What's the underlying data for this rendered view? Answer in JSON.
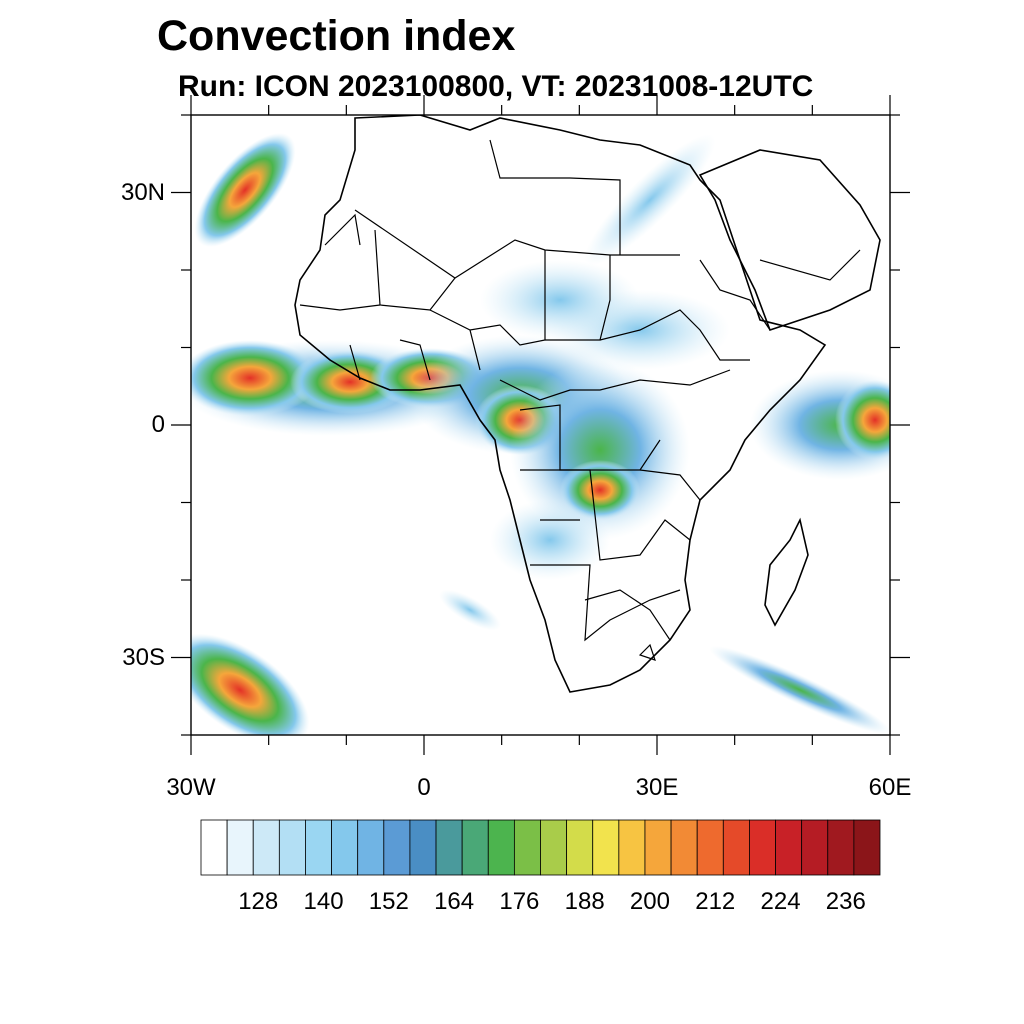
{
  "title": "Convection index",
  "subtitle": "Run: ICON 2023100800,  VT: 20231008-12UTC",
  "map": {
    "region": "Africa",
    "lon_range": [
      -30,
      60
    ],
    "lat_range": [
      -40,
      40
    ],
    "lat_ticks": [
      {
        "label": "30N",
        "lat": 30
      },
      {
        "label": "0",
        "lat": 0
      },
      {
        "label": "30S",
        "lat": -30
      }
    ],
    "lon_ticks": [
      {
        "label": "30W",
        "lon": -30
      },
      {
        "label": "0",
        "lon": 0
      },
      {
        "label": "30E",
        "lon": 30
      },
      {
        "label": "60E",
        "lon": 60
      }
    ],
    "field_color_low": "#a6dcf2",
    "field_color_mid": "#4bb54a",
    "field_color_high": "#e33127"
  },
  "colorbar": {
    "labels": [
      "128",
      "140",
      "152",
      "164",
      "176",
      "188",
      "200",
      "212",
      "224",
      "236"
    ],
    "colors": [
      "#ffffff",
      "#e8f5fc",
      "#cde9f7",
      "#b3dff4",
      "#9ad6f2",
      "#84c8ec",
      "#70b4e4",
      "#5b9bd5",
      "#4a8ec4",
      "#4a9a9c",
      "#4aa877",
      "#4cb44e",
      "#7bbf47",
      "#a9cc4a",
      "#d3dc4a",
      "#f2e34d",
      "#f7c442",
      "#f5a63b",
      "#f28a35",
      "#ee6a2e",
      "#e54a29",
      "#da2e28",
      "#c82127",
      "#b51c24",
      "#a0191f",
      "#8b1519"
    ]
  }
}
